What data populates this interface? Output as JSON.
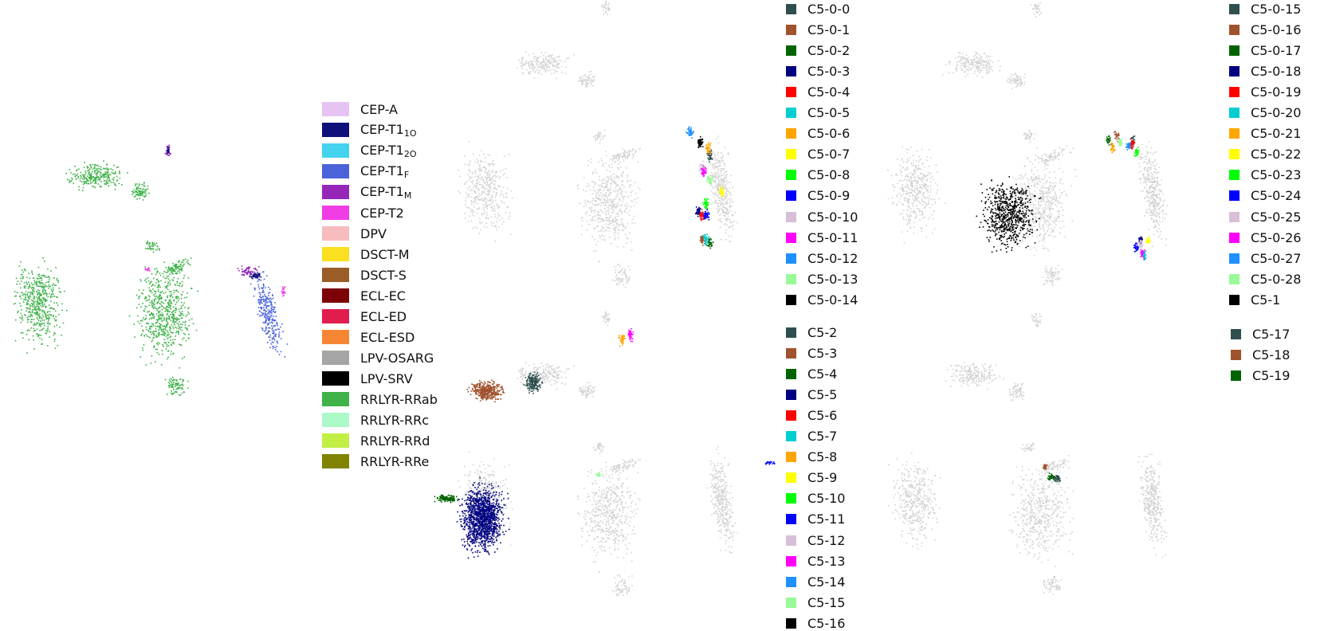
{
  "chart_data": [
    {
      "type": "scatter",
      "panel": "class-labels",
      "title": "",
      "highlight_groups": [
        "CEP-T1O",
        "CEP-T1F",
        "CEP-T1M",
        "CEP-T2",
        "RRLYR-RRab",
        "RRLYR-RRc"
      ],
      "legend": [
        {
          "key": "CEP-A",
          "text": "CEP-A",
          "sub": "",
          "color": "#e6c3f3"
        },
        {
          "key": "CEP-T1O",
          "text": "CEP-T1",
          "sub": "1O",
          "color": "#10107a"
        },
        {
          "key": "CEP-T1_2O",
          "text": "CEP-T1",
          "sub": "2O",
          "color": "#44d3ee"
        },
        {
          "key": "CEP-T1F",
          "text": "CEP-T1",
          "sub": "F",
          "color": "#4a63d8"
        },
        {
          "key": "CEP-T1M",
          "text": "CEP-T1",
          "sub": "M",
          "color": "#9526b8"
        },
        {
          "key": "CEP-T2",
          "text": "CEP-T2",
          "sub": "",
          "color": "#f03de6"
        },
        {
          "key": "DPV",
          "text": "DPV",
          "sub": "",
          "color": "#f7bcbe"
        },
        {
          "key": "DSCT-M",
          "text": "DSCT-M",
          "sub": "",
          "color": "#fbe01f"
        },
        {
          "key": "DSCT-S",
          "text": "DSCT-S",
          "sub": "",
          "color": "#9a5d27"
        },
        {
          "key": "ECL-EC",
          "text": "ECL-EC",
          "sub": "",
          "color": "#7d0206"
        },
        {
          "key": "ECL-ED",
          "text": "ECL-ED",
          "sub": "",
          "color": "#e11d4d"
        },
        {
          "key": "ECL-ESD",
          "text": "ECL-ESD",
          "sub": "",
          "color": "#f78634"
        },
        {
          "key": "LPV-OSARG",
          "text": "LPV-OSARG",
          "sub": "",
          "color": "#a5a5a5"
        },
        {
          "key": "LPV-SRV",
          "text": "LPV-SRV",
          "sub": "",
          "color": "#000000"
        },
        {
          "key": "RRLYR-RRab",
          "text": "RRLYR-RRab",
          "sub": "",
          "color": "#3fb24a"
        },
        {
          "key": "RRLYR-RRc",
          "text": "RRLYR-RRc",
          "sub": "",
          "color": "#abf8c8"
        },
        {
          "key": "RRLYR-RRd",
          "text": "RRLYR-RRd",
          "sub": "",
          "color": "#c1ef46"
        },
        {
          "key": "RRLYR-RRe",
          "text": "RRLYR-RRe",
          "sub": "",
          "color": "#808200"
        }
      ]
    },
    {
      "type": "scatter",
      "panel": "clusters-C5-0-0-to-C5-0-14",
      "title": "",
      "background_color": "#d3d3d3",
      "legend": [
        {
          "text": "C5-0-0",
          "color": "#2f4f4f"
        },
        {
          "text": "C5-0-1",
          "color": "#a0522d"
        },
        {
          "text": "C5-0-2",
          "color": "#006400"
        },
        {
          "text": "C5-0-3",
          "color": "#000080"
        },
        {
          "text": "C5-0-4",
          "color": "#ff0000"
        },
        {
          "text": "C5-0-5",
          "color": "#00ced1"
        },
        {
          "text": "C5-0-6",
          "color": "#ffa500"
        },
        {
          "text": "C5-0-7",
          "color": "#ffff00"
        },
        {
          "text": "C5-0-8",
          "color": "#00ff00"
        },
        {
          "text": "C5-0-9",
          "color": "#0000ff"
        },
        {
          "text": "C5-0-10",
          "color": "#d8bfd8"
        },
        {
          "text": "C5-0-11",
          "color": "#ff00ff"
        },
        {
          "text": "C5-0-12",
          "color": "#1e90ff"
        },
        {
          "text": "C5-0-13",
          "color": "#98fb98"
        },
        {
          "text": "C5-0-14",
          "color": "#000000"
        }
      ]
    },
    {
      "type": "scatter",
      "panel": "clusters-C5-0-15-to-C5-1",
      "title": "",
      "background_color": "#d3d3d3",
      "legend": [
        {
          "text": "C5-0-15",
          "color": "#2f4f4f"
        },
        {
          "text": "C5-0-16",
          "color": "#a0522d"
        },
        {
          "text": "C5-0-17",
          "color": "#006400"
        },
        {
          "text": "C5-0-18",
          "color": "#000080"
        },
        {
          "text": "C5-0-19",
          "color": "#ff0000"
        },
        {
          "text": "C5-0-20",
          "color": "#00ced1"
        },
        {
          "text": "C5-0-21",
          "color": "#ffa500"
        },
        {
          "text": "C5-0-22",
          "color": "#ffff00"
        },
        {
          "text": "C5-0-23",
          "color": "#00ff00"
        },
        {
          "text": "C5-0-24",
          "color": "#0000ff"
        },
        {
          "text": "C5-0-25",
          "color": "#d8bfd8"
        },
        {
          "text": "C5-0-26",
          "color": "#ff00ff"
        },
        {
          "text": "C5-0-27",
          "color": "#1e90ff"
        },
        {
          "text": "C5-0-28",
          "color": "#98fb98"
        },
        {
          "text": "C5-1",
          "color": "#000000"
        }
      ]
    },
    {
      "type": "scatter",
      "panel": "clusters-C5-2-to-C5-16",
      "title": "",
      "background_color": "#d3d3d3",
      "legend": [
        {
          "text": "C5-2",
          "color": "#2f4f4f"
        },
        {
          "text": "C5-3",
          "color": "#a0522d"
        },
        {
          "text": "C5-4",
          "color": "#006400"
        },
        {
          "text": "C5-5",
          "color": "#000080"
        },
        {
          "text": "C5-6",
          "color": "#ff0000"
        },
        {
          "text": "C5-7",
          "color": "#00ced1"
        },
        {
          "text": "C5-8",
          "color": "#ffa500"
        },
        {
          "text": "C5-9",
          "color": "#ffff00"
        },
        {
          "text": "C5-10",
          "color": "#00ff00"
        },
        {
          "text": "C5-11",
          "color": "#0000ff"
        },
        {
          "text": "C5-12",
          "color": "#d8bfd8"
        },
        {
          "text": "C5-13",
          "color": "#ff00ff"
        },
        {
          "text": "C5-14",
          "color": "#1e90ff"
        },
        {
          "text": "C5-15",
          "color": "#98fb98"
        },
        {
          "text": "C5-16",
          "color": "#000000"
        }
      ]
    },
    {
      "type": "scatter",
      "panel": "clusters-C5-17-to-C5-19",
      "title": "",
      "background_color": "#d3d3d3",
      "legend": [
        {
          "text": "C5-17",
          "color": "#2f4f4f"
        },
        {
          "text": "C5-18",
          "color": "#a0522d"
        },
        {
          "text": "C5-19",
          "color": "#006400"
        }
      ]
    }
  ]
}
